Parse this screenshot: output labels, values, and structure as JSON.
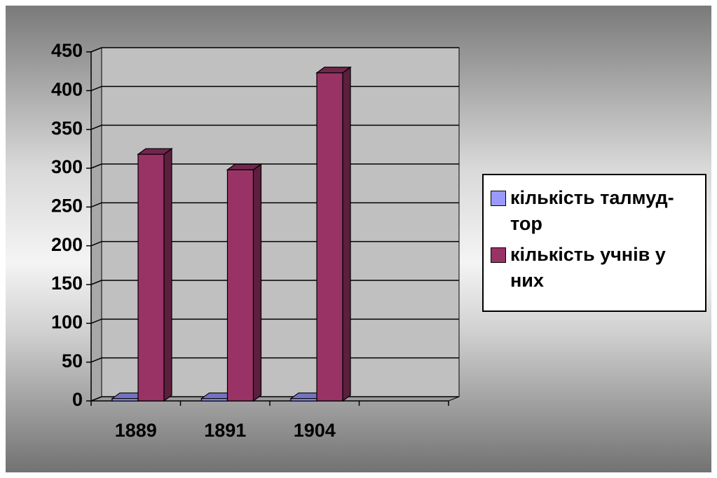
{
  "chart_data": {
    "type": "bar3d",
    "categories": [
      "1889",
      "1891",
      "1904",
      null
    ],
    "series": [
      {
        "name": "кількість талмуд-тор",
        "color": "#9999ff",
        "values": [
          3,
          3,
          3,
          null
        ]
      },
      {
        "name": "кількість учнів у них",
        "color": "#993366",
        "values": [
          318,
          298,
          423,
          null
        ]
      }
    ],
    "ylim": [
      0,
      450
    ],
    "yticks": [
      0,
      50,
      100,
      150,
      200,
      250,
      300,
      350,
      400,
      450
    ],
    "grid": true,
    "legend": "right"
  }
}
